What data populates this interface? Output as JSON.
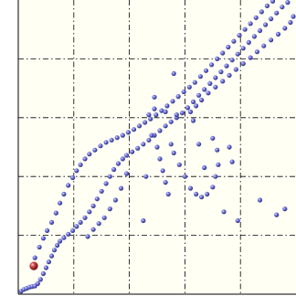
{
  "chart_data": {
    "type": "scatter",
    "title": "",
    "xlabel": "",
    "ylabel": "",
    "xlim": [
      0,
      5
    ],
    "ylim": [
      0,
      5
    ],
    "grid": true,
    "grid_style": "dash-dot",
    "x_ticks": [
      1,
      2,
      3,
      4,
      5
    ],
    "y_ticks": [
      1,
      2,
      3,
      4,
      5
    ],
    "background_color": "#fffff4",
    "axis_color": "#000000",
    "grid_color": "#000000",
    "marker_style": "sphere",
    "series": [
      {
        "color": "#5a5ec2",
        "points": [
          [
            0.05,
            0.05
          ],
          [
            0.1,
            0.08
          ],
          [
            0.15,
            0.1
          ],
          [
            0.2,
            0.12
          ],
          [
            0.25,
            0.13
          ],
          [
            0.3,
            0.14
          ],
          [
            0.35,
            0.18
          ],
          [
            0.4,
            0.25
          ],
          [
            0.45,
            0.35
          ],
          [
            0.5,
            0.45
          ],
          [
            0.55,
            0.55
          ],
          [
            0.6,
            0.65
          ],
          [
            0.65,
            0.75
          ],
          [
            0.7,
            0.83
          ],
          [
            0.75,
            0.9
          ],
          [
            0.82,
            0.96
          ],
          [
            0.9,
            1.02
          ],
          [
            0.98,
            1.08
          ],
          [
            1.05,
            1.15
          ],
          [
            1.12,
            1.22
          ],
          [
            1.2,
            1.3
          ],
          [
            1.28,
            1.4
          ],
          [
            1.35,
            1.5
          ],
          [
            1.42,
            1.62
          ],
          [
            1.5,
            1.75
          ],
          [
            1.58,
            1.88
          ],
          [
            1.65,
            2.0
          ],
          [
            1.72,
            2.12
          ],
          [
            1.8,
            2.22
          ],
          [
            1.88,
            2.3
          ],
          [
            1.95,
            2.36
          ],
          [
            2.05,
            2.42
          ],
          [
            2.15,
            2.48
          ],
          [
            2.25,
            2.55
          ],
          [
            2.35,
            2.62
          ],
          [
            2.45,
            2.7
          ],
          [
            2.55,
            2.78
          ],
          [
            2.65,
            2.86
          ],
          [
            2.75,
            2.93
          ],
          [
            2.85,
            3.0
          ],
          [
            2.95,
            3.08
          ],
          [
            3.05,
            3.17
          ],
          [
            3.15,
            3.27
          ],
          [
            3.25,
            3.38
          ],
          [
            3.35,
            3.48
          ],
          [
            3.45,
            3.58
          ],
          [
            3.55,
            3.68
          ],
          [
            3.65,
            3.78
          ],
          [
            3.75,
            3.88
          ],
          [
            3.85,
            3.98
          ],
          [
            3.95,
            4.08
          ],
          [
            4.05,
            4.18
          ],
          [
            4.15,
            4.28
          ],
          [
            4.25,
            4.38
          ],
          [
            4.35,
            4.48
          ],
          [
            4.45,
            4.58
          ],
          [
            4.55,
            4.68
          ],
          [
            4.65,
            4.78
          ],
          [
            4.75,
            4.88
          ],
          [
            4.85,
            4.96
          ],
          [
            0.3,
            0.62
          ],
          [
            0.38,
            0.8
          ],
          [
            0.45,
            0.95
          ],
          [
            0.52,
            1.08
          ],
          [
            0.6,
            1.22
          ],
          [
            0.68,
            1.38
          ],
          [
            0.75,
            1.55
          ],
          [
            0.82,
            1.7
          ],
          [
            0.9,
            1.85
          ],
          [
            0.98,
            1.98
          ],
          [
            1.05,
            2.1
          ],
          [
            1.12,
            2.2
          ],
          [
            1.2,
            2.3
          ],
          [
            1.28,
            2.38
          ],
          [
            1.38,
            2.45
          ],
          [
            1.48,
            2.52
          ],
          [
            1.58,
            2.58
          ],
          [
            1.68,
            2.62
          ],
          [
            1.78,
            2.66
          ],
          [
            1.88,
            2.7
          ],
          [
            1.98,
            2.75
          ],
          [
            2.08,
            2.8
          ],
          [
            2.18,
            2.86
          ],
          [
            2.28,
            2.92
          ],
          [
            2.38,
            2.98
          ],
          [
            2.48,
            3.05
          ],
          [
            2.58,
            3.12
          ],
          [
            2.68,
            3.2
          ],
          [
            2.78,
            3.28
          ],
          [
            2.88,
            3.36
          ],
          [
            2.98,
            3.44
          ],
          [
            3.08,
            3.52
          ],
          [
            3.18,
            3.6
          ],
          [
            3.28,
            3.7
          ],
          [
            3.38,
            3.8
          ],
          [
            3.48,
            3.9
          ],
          [
            3.58,
            4.0
          ],
          [
            3.68,
            4.1
          ],
          [
            3.78,
            4.2
          ],
          [
            3.88,
            4.3
          ],
          [
            3.98,
            4.4
          ],
          [
            4.08,
            4.5
          ],
          [
            4.18,
            4.6
          ],
          [
            4.28,
            4.7
          ],
          [
            4.38,
            4.8
          ],
          [
            4.48,
            4.9
          ],
          [
            4.58,
            4.98
          ],
          [
            3.1,
            3.1
          ],
          [
            3.2,
            3.2
          ],
          [
            3.3,
            3.3
          ],
          [
            3.42,
            3.42
          ],
          [
            3.55,
            3.52
          ],
          [
            3.68,
            3.62
          ],
          [
            3.8,
            3.72
          ],
          [
            3.92,
            3.82
          ],
          [
            4.05,
            3.92
          ],
          [
            4.18,
            4.02
          ],
          [
            4.3,
            4.12
          ],
          [
            4.42,
            4.22
          ],
          [
            4.55,
            4.32
          ],
          [
            4.68,
            4.42
          ],
          [
            4.8,
            4.52
          ],
          [
            4.9,
            4.62
          ],
          [
            4.95,
            4.72
          ],
          [
            2.25,
            1.25
          ],
          [
            2.3,
            2.0
          ],
          [
            2.4,
            2.7
          ],
          [
            2.5,
            2.5
          ],
          [
            2.55,
            2.3
          ],
          [
            2.6,
            2.1
          ],
          [
            2.65,
            1.9
          ],
          [
            2.7,
            1.7
          ],
          [
            2.75,
            2.55
          ],
          [
            2.8,
            2.4
          ],
          [
            2.9,
            2.2
          ],
          [
            3.0,
            2.0
          ],
          [
            3.1,
            1.8
          ],
          [
            3.2,
            1.7
          ],
          [
            3.3,
            1.65
          ],
          [
            3.4,
            1.7
          ],
          [
            3.5,
            1.82
          ],
          [
            3.55,
            2.0
          ],
          [
            3.6,
            2.2
          ],
          [
            3.58,
            2.45
          ],
          [
            3.5,
            2.65
          ],
          [
            3.8,
            2.5
          ],
          [
            3.85,
            2.25
          ],
          [
            3.35,
            2.15
          ],
          [
            3.25,
            2.55
          ],
          [
            3.15,
            2.95
          ],
          [
            2.85,
            3.05
          ],
          [
            2.65,
            3.1
          ],
          [
            2.45,
            3.15
          ],
          [
            2.35,
            3.05
          ],
          [
            1.95,
            2.05
          ],
          [
            1.85,
            1.8
          ],
          [
            1.75,
            1.6
          ],
          [
            1.65,
            1.45
          ],
          [
            1.55,
            1.3
          ],
          [
            1.45,
            1.2
          ],
          [
            1.35,
            1.1
          ],
          [
            1.25,
            0.98
          ],
          [
            3.7,
            1.4
          ],
          [
            4.35,
            1.6
          ],
          [
            3.95,
            1.25
          ],
          [
            4.65,
            1.35
          ],
          [
            4.8,
            1.45
          ],
          [
            2.8,
            3.75
          ],
          [
            2.45,
            3.35
          ]
        ]
      },
      {
        "color": "#b03030",
        "points": [
          [
            0.28,
            0.48
          ]
        ]
      }
    ]
  }
}
